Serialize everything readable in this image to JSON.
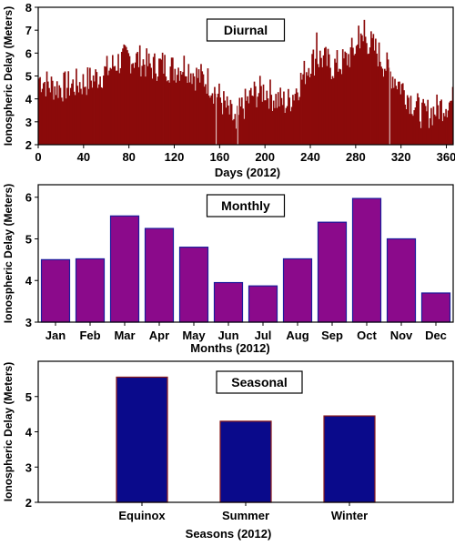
{
  "chart_data": [
    {
      "type": "bar",
      "title": "Diurnal",
      "xlabel": "Days (2012)",
      "ylabel": "Ionospheric Delay (Meters)",
      "xlim": [
        0,
        366
      ],
      "ylim": [
        2,
        8
      ],
      "xticks": [
        0,
        40,
        80,
        120,
        160,
        200,
        240,
        280,
        320,
        360
      ],
      "yticks": [
        2,
        3,
        4,
        5,
        6,
        7,
        8
      ],
      "bar_color": "#8b0a0a",
      "anchors": [
        [
          1,
          4.9
        ],
        [
          10,
          4.6
        ],
        [
          20,
          4.5
        ],
        [
          30,
          4.6
        ],
        [
          40,
          4.7
        ],
        [
          50,
          4.9
        ],
        [
          60,
          5.2
        ],
        [
          70,
          5.6
        ],
        [
          80,
          5.8
        ],
        [
          90,
          5.7
        ],
        [
          100,
          5.4
        ],
        [
          110,
          5.5
        ],
        [
          120,
          5.3
        ],
        [
          130,
          5.5
        ],
        [
          140,
          5.0
        ],
        [
          150,
          4.8
        ],
        [
          160,
          4.1
        ],
        [
          170,
          3.3
        ],
        [
          175,
          3.0
        ],
        [
          180,
          3.6
        ],
        [
          190,
          4.2
        ],
        [
          200,
          4.4
        ],
        [
          210,
          4.0
        ],
        [
          220,
          3.8
        ],
        [
          230,
          4.6
        ],
        [
          240,
          5.6
        ],
        [
          250,
          5.8
        ],
        [
          260,
          5.4
        ],
        [
          270,
          5.6
        ],
        [
          280,
          6.2
        ],
        [
          290,
          6.6
        ],
        [
          300,
          6.0
        ],
        [
          310,
          5.2
        ],
        [
          320,
          4.6
        ],
        [
          330,
          3.9
        ],
        [
          340,
          3.3
        ],
        [
          350,
          3.5
        ],
        [
          360,
          3.8
        ],
        [
          366,
          3.9
        ]
      ]
    },
    {
      "type": "bar",
      "title": "Monthly",
      "xlabel": "Months (2012)",
      "ylabel": "Ionospheric Delay (Meters)",
      "ylim": [
        3,
        6.3
      ],
      "yticks": [
        3,
        4,
        5,
        6
      ],
      "categories": [
        "Jan",
        "Feb",
        "Mar",
        "Apr",
        "May",
        "Jun",
        "Jul",
        "Aug",
        "Sep",
        "Oct",
        "Nov",
        "Dec"
      ],
      "values": [
        4.5,
        4.52,
        5.55,
        5.25,
        4.8,
        3.95,
        3.87,
        4.52,
        5.4,
        5.97,
        5.0,
        3.7
      ],
      "bar_color": "#8b0a8b",
      "edge_color": "#1c1c9c"
    },
    {
      "type": "bar",
      "title": "Seasonal",
      "xlabel": "Seasons (2012)",
      "ylabel": "Ionospheric Delay (Meters)",
      "ylim": [
        2,
        6
      ],
      "yticks": [
        2,
        3,
        4,
        5
      ],
      "categories": [
        "Equinox",
        "Summer",
        "Winter"
      ],
      "values": [
        5.55,
        4.3,
        4.45
      ],
      "bar_color": "#0a0a8b",
      "edge_color": "#8b1a1a"
    }
  ]
}
